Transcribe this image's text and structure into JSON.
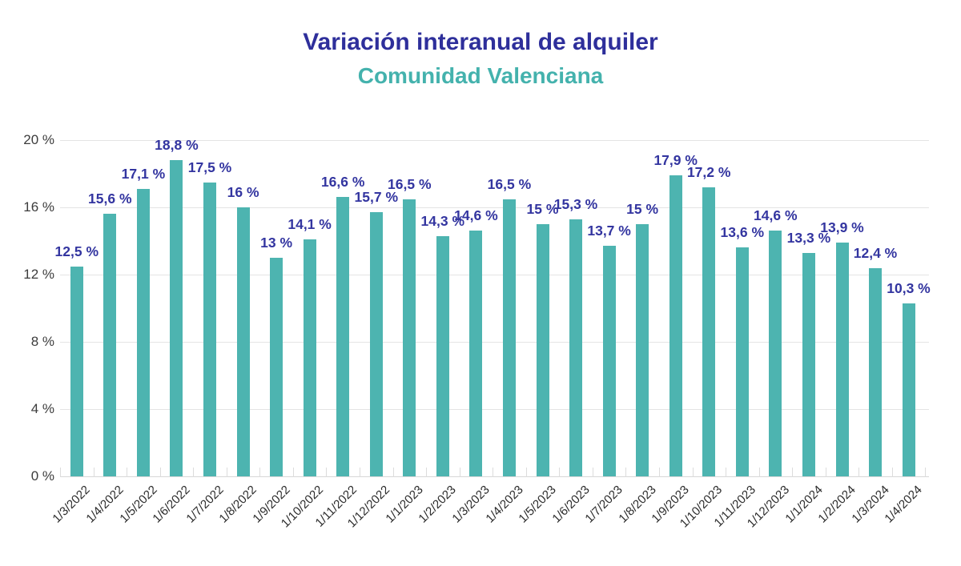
{
  "header": {
    "title": "Variación interanual de alquiler",
    "subtitle": "Comunidad Valenciana"
  },
  "chart_data": {
    "type": "bar",
    "title": "Variación interanual de alquiler",
    "subtitle": "Comunidad Valenciana",
    "categories": [
      "1/3/2022",
      "1/4/2022",
      "1/5/2022",
      "1/6/2022",
      "1/7/2022",
      "1/8/2022",
      "1/9/2022",
      "1/10/2022",
      "1/11/2022",
      "1/12/2022",
      "1/1/2023",
      "1/2/2023",
      "1/3/2023",
      "1/4/2023",
      "1/5/2023",
      "1/6/2023",
      "1/7/2023",
      "1/8/2023",
      "1/9/2023",
      "1/10/2023",
      "1/11/2023",
      "1/12/2023",
      "1/1/2024",
      "1/2/2024",
      "1/3/2024",
      "1/4/2024"
    ],
    "values": [
      12.5,
      15.6,
      17.1,
      18.8,
      17.5,
      16,
      13,
      14.1,
      16.6,
      15.7,
      16.5,
      14.3,
      14.6,
      16.5,
      15,
      15.3,
      13.7,
      15,
      17.9,
      17.2,
      13.6,
      14.6,
      13.3,
      13.9,
      12.4,
      10.3
    ],
    "value_labels": [
      "12,5 %",
      "15,6 %",
      "17,1 %",
      "18,8 %",
      "17,5 %",
      "16 %",
      "13 %",
      "14,1 %",
      "16,6 %",
      "15,7 %",
      "16,5 %",
      "14,3 %",
      "14,6 %",
      "16,5 %",
      "15 %",
      "15,3 %",
      "13,7 %",
      "15 %",
      "17,9 %",
      "17,2 %",
      "13,6 %",
      "14,6 %",
      "13,3 %",
      "13,9 %",
      "12,4 %",
      "10,3 %"
    ],
    "xlabel": "",
    "ylabel": "",
    "ylim": [
      0,
      20
    ],
    "ytick_values": [
      0,
      4,
      8,
      12,
      16,
      20
    ],
    "ytick_labels": [
      "0 %",
      "4 %",
      "8 %",
      "12 %",
      "16 %",
      "20 %"
    ],
    "grid": true,
    "legend": false,
    "colors": {
      "bar": "#4db4b0",
      "value_label": "#3335a0",
      "title": "#2e2f9b",
      "subtitle": "#44b2ad",
      "ytick_label": "#3c3c3c",
      "xtick_label": "#2b2b2b",
      "gridline": "#e4e4e4"
    }
  }
}
